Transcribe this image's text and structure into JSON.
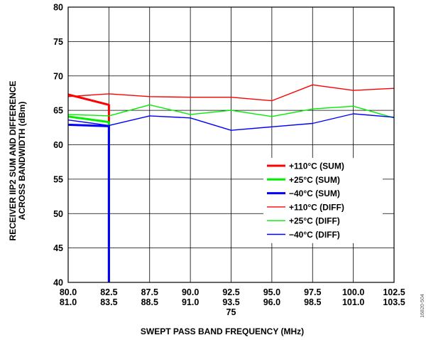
{
  "figure_id": "16820-504",
  "chart_data": {
    "type": "line",
    "title": "",
    "xlabel": "SWEPT PASS BAND FREQUENCY (MHz)",
    "ylabel_lines": [
      "RECEIVER IIP2 SUM AND DIFFERENCE",
      "ACROSS BANDWIDTH (dBm)"
    ],
    "ylim": [
      40,
      80
    ],
    "yticks": [
      40,
      45,
      50,
      55,
      60,
      65,
      70,
      75,
      80
    ],
    "x_categories": [
      {
        "top": "80.0",
        "bottom": "81.0"
      },
      {
        "top": "82.5",
        "bottom": "83.5"
      },
      {
        "top": "87.5",
        "bottom": "88.5"
      },
      {
        "top": "90.0",
        "bottom": "91.0"
      },
      {
        "top": "92.5",
        "bottom": "93.5",
        "extra": "75"
      },
      {
        "top": "95.0",
        "bottom": "96.0"
      },
      {
        "top": "97.5",
        "bottom": "98.5"
      },
      {
        "top": "100.0",
        "bottom": "101.0"
      },
      {
        "top": "102.5",
        "bottom": "103.5"
      }
    ],
    "grid": true,
    "legend_position": "right-middle",
    "series": [
      {
        "name": "+110°C (SUM)",
        "color": "#ff0000",
        "style": "thick",
        "points": [
          [
            0,
            67.3
          ],
          [
            1,
            65.8
          ],
          [
            1,
            40.0
          ]
        ]
      },
      {
        "name": "+25°C (SUM)",
        "color": "#00ee00",
        "style": "thick",
        "points": [
          [
            0,
            64.1
          ],
          [
            1,
            63.3
          ],
          [
            1,
            40.0
          ]
        ]
      },
      {
        "name": "−40°C (SUM)",
        "color": "#0000ff",
        "style": "thick",
        "points": [
          [
            0,
            62.9
          ],
          [
            1,
            62.7
          ],
          [
            1,
            40.0
          ]
        ]
      },
      {
        "name": "+110°C (DIFF)",
        "color": "#ff0000",
        "style": "thin",
        "points": [
          [
            0,
            67.0
          ],
          [
            1,
            67.4
          ],
          [
            2,
            67.0
          ],
          [
            3,
            66.9
          ],
          [
            4,
            66.9
          ],
          [
            5,
            66.4
          ],
          [
            6,
            68.7
          ],
          [
            7,
            67.9
          ],
          [
            8,
            68.2
          ]
        ]
      },
      {
        "name": "+25°C (DIFF)",
        "color": "#00ee00",
        "style": "thin",
        "points": [
          [
            0,
            64.4
          ],
          [
            1,
            64.2
          ],
          [
            2,
            65.8
          ],
          [
            3,
            64.4
          ],
          [
            4,
            65.0
          ],
          [
            5,
            64.1
          ],
          [
            6,
            65.2
          ],
          [
            7,
            65.6
          ],
          [
            8,
            63.9
          ]
        ]
      },
      {
        "name": "−40°C (DIFF)",
        "color": "#0000ff",
        "style": "thin",
        "points": [
          [
            0,
            63.6
          ],
          [
            1,
            62.8
          ],
          [
            2,
            64.2
          ],
          [
            3,
            63.9
          ],
          [
            4,
            62.1
          ],
          [
            5,
            62.6
          ],
          [
            6,
            63.1
          ],
          [
            7,
            64.5
          ],
          [
            8,
            64.0
          ]
        ]
      }
    ]
  }
}
